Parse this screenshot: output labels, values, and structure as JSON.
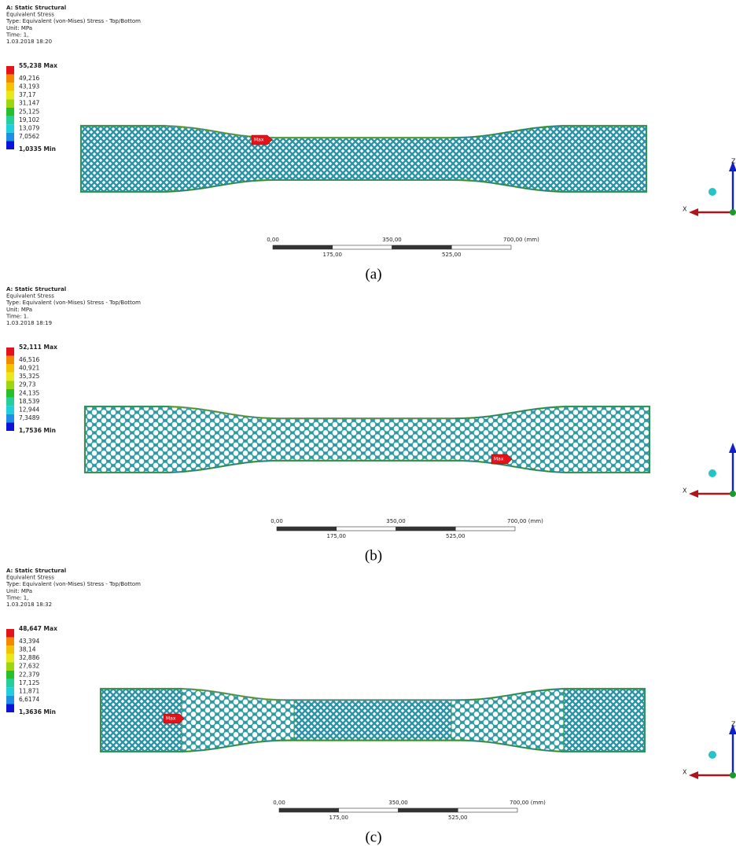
{
  "panels": [
    {
      "header": [
        "A: Static Structural",
        "Equivalent Stress",
        "Type: Equivalent (von-Mises) Stress - Top/Bottom",
        "Unit: MPa",
        "Time: 1,",
        "1.03.2018 18:20"
      ],
      "legend": [
        "55,238 Max",
        "49,216",
        "43,193",
        "37,17",
        "31,147",
        "25,125",
        "19,102",
        "13,079",
        "7,0562",
        "1,0335 Min"
      ],
      "scale_top": [
        "0,00",
        "350,00",
        "700,00 (mm)"
      ],
      "scale_bottom": [
        "175,00",
        "525,00"
      ],
      "marker": "Max",
      "axes": [
        "X",
        "Z"
      ],
      "caption": "(a)"
    },
    {
      "header": [
        "A: Static Structural",
        "Equivalent Stress",
        "Type: Equivalent (von-Mises) Stress - Top/Bottom",
        "Unit: MPa",
        "Time: 1.",
        "1.03.2018 18:19"
      ],
      "legend": [
        "52,111 Max",
        "46,516",
        "40,921",
        "35,325",
        "29,73",
        "24,135",
        "18,539",
        "12,944",
        "7,3489",
        "1,7536 Min"
      ],
      "scale_top": [
        "0,00",
        "350,00",
        "700,00 (mm)"
      ],
      "scale_bottom": [
        "175,00",
        "525,00"
      ],
      "marker": "Max",
      "axes": [
        "X"
      ],
      "caption": "(b)"
    },
    {
      "header": [
        "A: Static Structural",
        "Equivalent Stress",
        "Type: Equivalent (von-Mises) Stress - Top/Bottom",
        "Unit: MPa",
        "Time: 1,",
        "1.03.2018 18:32"
      ],
      "legend": [
        "48,647 Max",
        "43,394",
        "38,14",
        "32,886",
        "27,632",
        "22,379",
        "17,125",
        "11,871",
        "6,6174",
        "1,3636 Min"
      ],
      "scale_top": [
        "0,00",
        "350,00",
        "700,00 (mm)"
      ],
      "scale_bottom": [
        "175,00",
        "525,00"
      ],
      "marker": "Max",
      "axes": [
        "X",
        "Z"
      ],
      "caption": "(c)"
    }
  ]
}
